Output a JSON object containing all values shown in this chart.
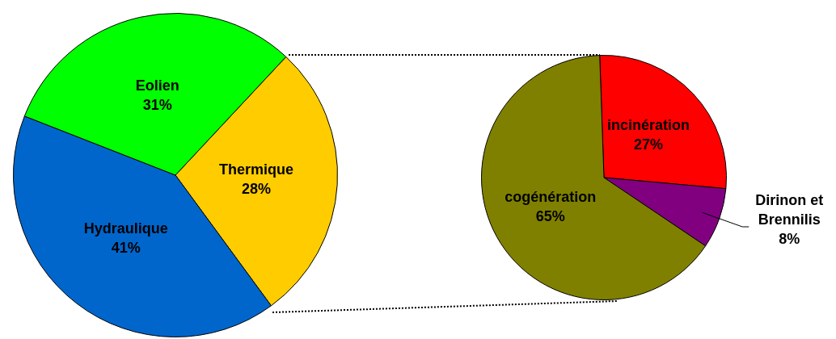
{
  "chart_data": [
    {
      "type": "pie",
      "categories": [
        "Thermique",
        "Hydraulique",
        "Eolien"
      ],
      "values": [
        28,
        41,
        31
      ],
      "colors": [
        "#ffcc00",
        "#0066cc",
        "#00ff00"
      ],
      "value_labels": [
        "28%",
        "41%",
        "31%"
      ],
      "legend": false
    },
    {
      "type": "pie",
      "categories": [
        "incinération",
        "Dirinon et Brennilis",
        "cogénération"
      ],
      "values": [
        27,
        8,
        65
      ],
      "colors": [
        "#ff0000",
        "#800080",
        "#808000"
      ],
      "value_labels": [
        "27%",
        "8%",
        "65%"
      ],
      "legend": false
    }
  ]
}
